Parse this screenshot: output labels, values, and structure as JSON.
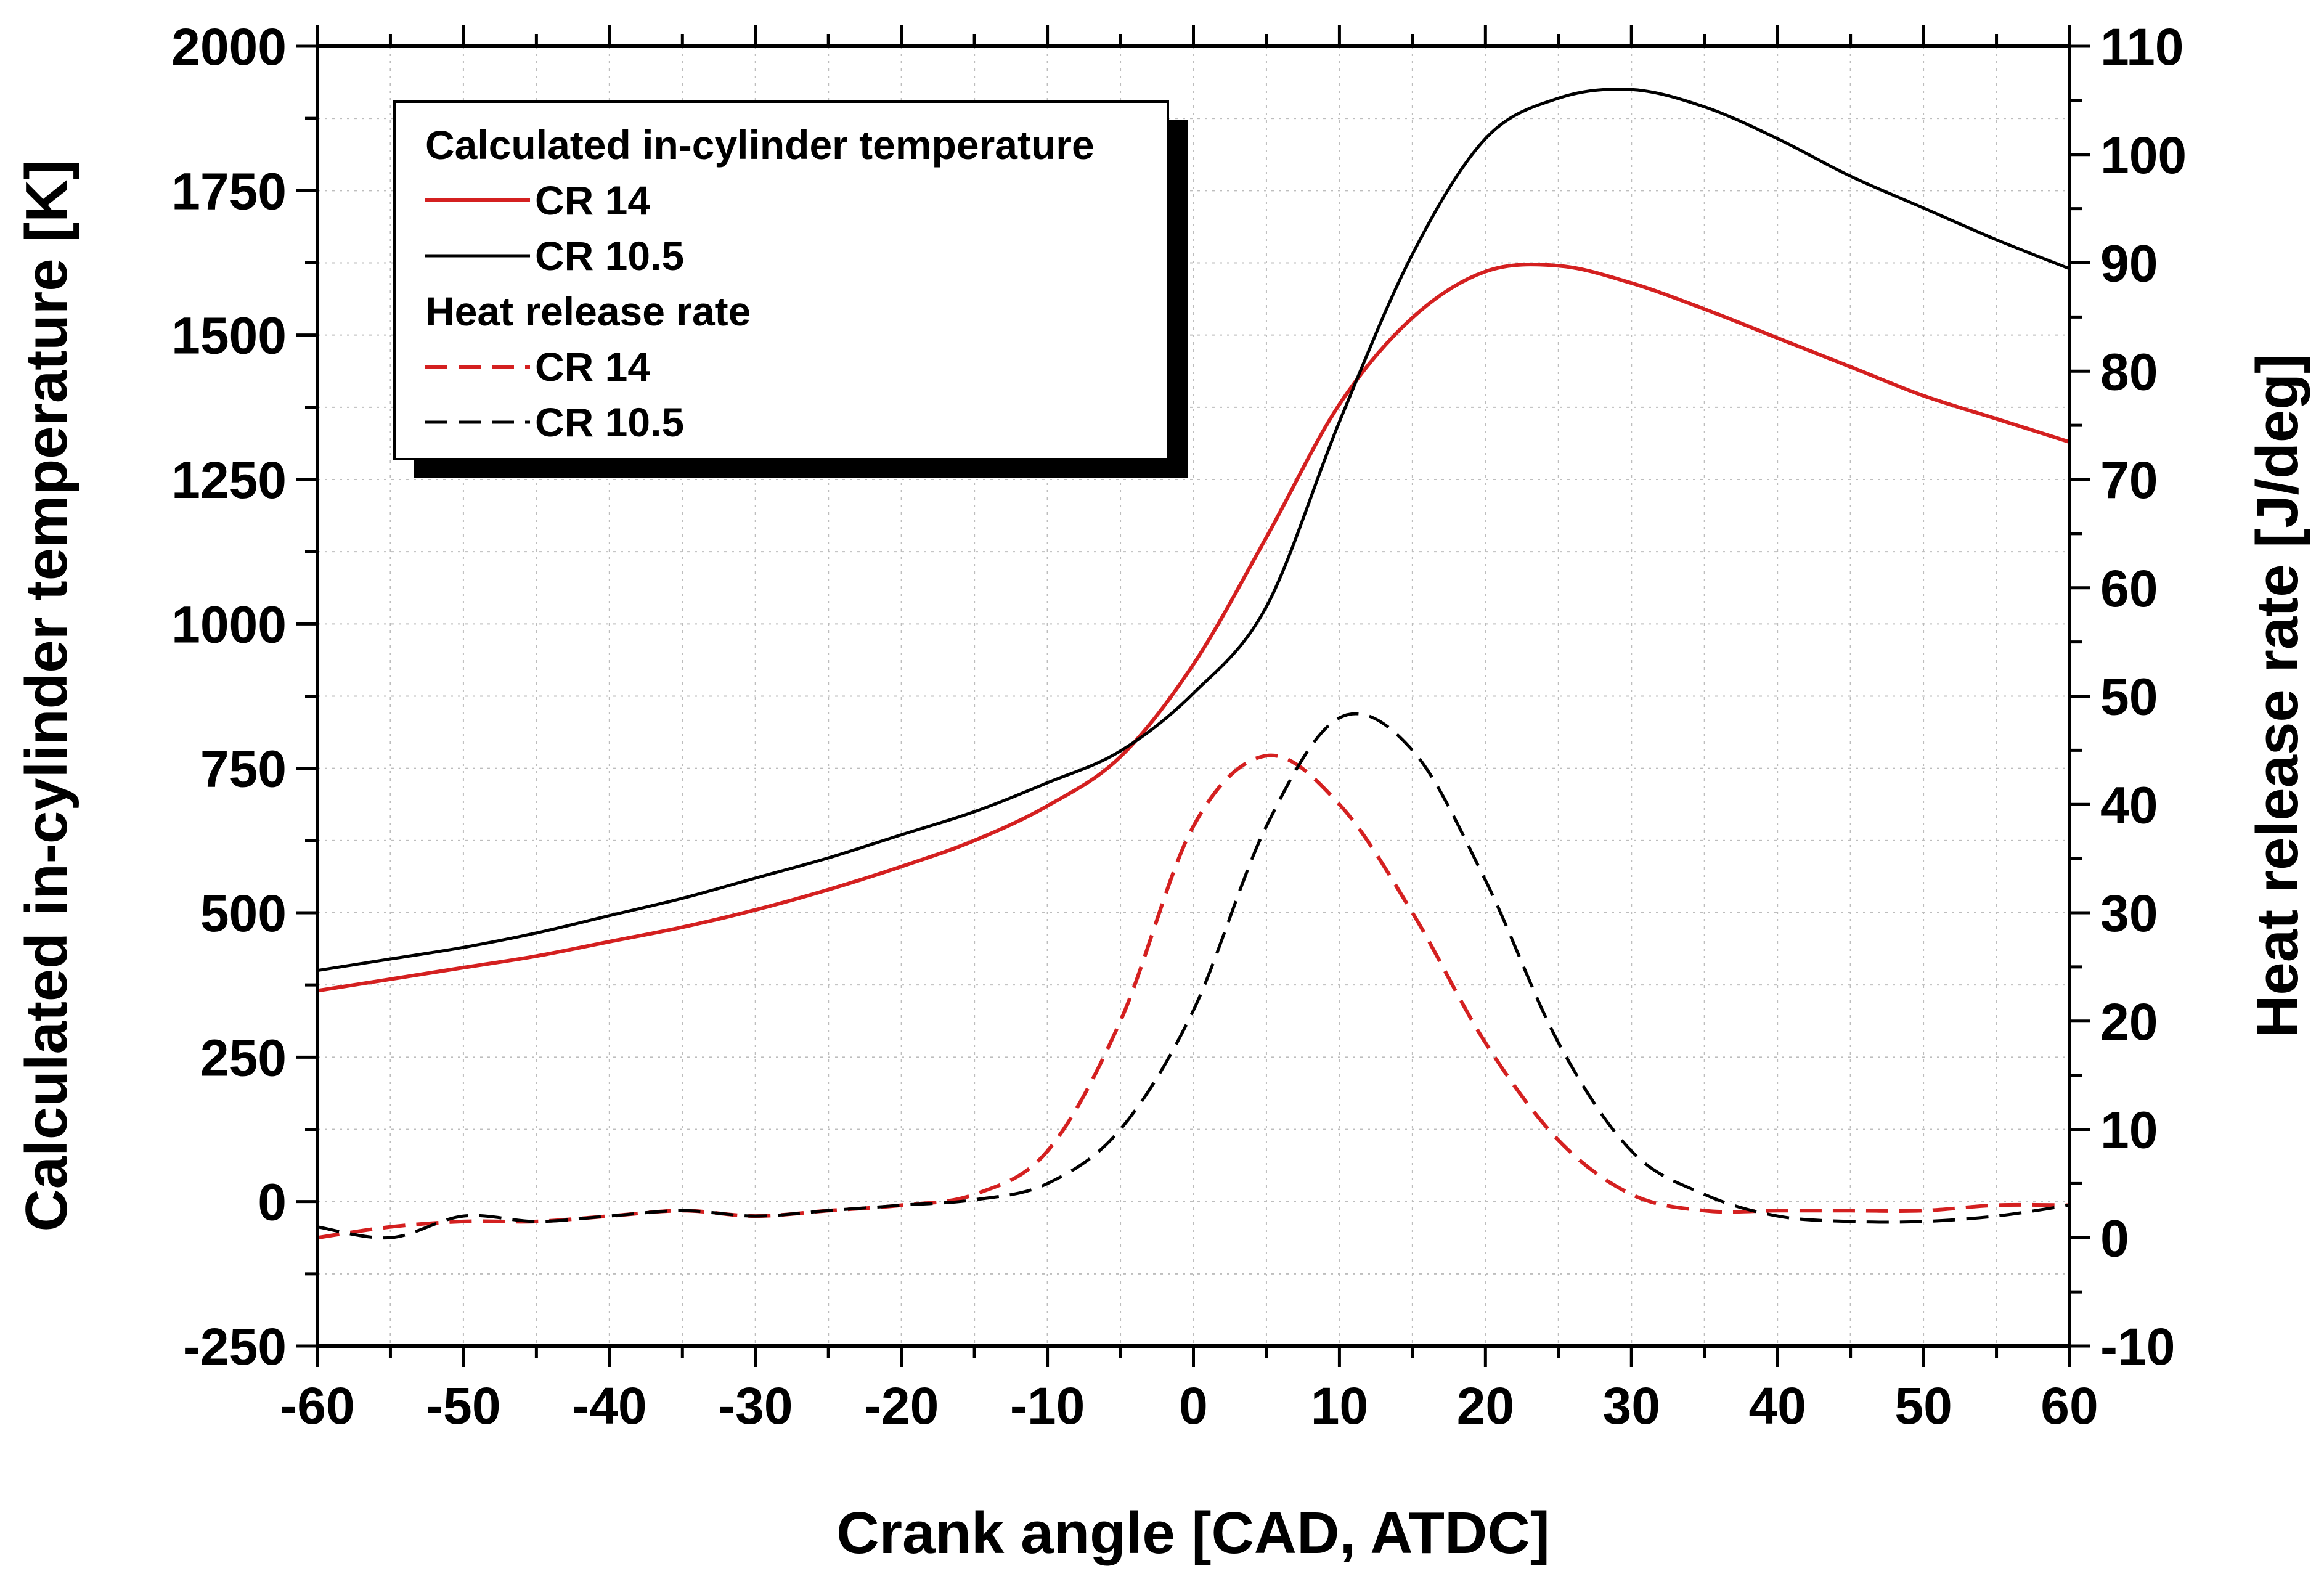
{
  "chart_data": {
    "type": "line",
    "xlabel": "Crank angle [CAD, ATDC]",
    "ylabel_left": "Calculated in-cylinder temperature [K]",
    "ylabel_right": "Heat release rate [J/deg]",
    "xlim": [
      -60,
      60
    ],
    "ylim_left": [
      -250,
      2000
    ],
    "ylim_right": [
      -10,
      110
    ],
    "xticks": [
      -60,
      -50,
      -40,
      -30,
      -20,
      -10,
      0,
      10,
      20,
      30,
      40,
      50,
      60
    ],
    "yticks_left": [
      -250,
      0,
      250,
      500,
      750,
      1000,
      1250,
      1500,
      1750,
      2000
    ],
    "yticks_right": [
      -10,
      0,
      10,
      20,
      30,
      40,
      50,
      60,
      70,
      80,
      90,
      100,
      110
    ],
    "grid": true,
    "legend_position": "top-left",
    "legend": {
      "group1_title": "Calculated in-cylinder temperature",
      "group2_title": "Heat release rate",
      "entries": [
        {
          "label": "CR 14",
          "series": "temp_cr14"
        },
        {
          "label": "CR 10.5",
          "series": "temp_cr105"
        },
        {
          "label": "CR 14",
          "series": "hrr_cr14"
        },
        {
          "label": "CR 10.5",
          "series": "hrr_cr105"
        }
      ]
    },
    "x": [
      -60,
      -55,
      -50,
      -45,
      -40,
      -35,
      -30,
      -25,
      -20,
      -15,
      -10,
      -5,
      0,
      5,
      10,
      15,
      20,
      25,
      30,
      35,
      40,
      45,
      50,
      55,
      60
    ],
    "series": [
      {
        "id": "temp_cr14",
        "name": "CR 14",
        "axis": "left",
        "color": "#d42020",
        "dash": "solid",
        "values": [
          365,
          385,
          405,
          425,
          450,
          475,
          505,
          540,
          580,
          625,
          685,
          770,
          930,
          1150,
          1380,
          1530,
          1610,
          1620,
          1590,
          1545,
          1495,
          1445,
          1395,
          1355,
          1315
        ]
      },
      {
        "id": "temp_cr105",
        "name": "CR 10.5",
        "axis": "left",
        "color": "#000000",
        "dash": "solid",
        "values": [
          400,
          420,
          440,
          465,
          495,
          525,
          560,
          595,
          635,
          675,
          725,
          780,
          880,
          1030,
          1350,
          1640,
          1840,
          1910,
          1925,
          1895,
          1840,
          1775,
          1720,
          1665,
          1615
        ]
      },
      {
        "id": "hrr_cr14",
        "name": "CR 14",
        "axis": "right",
        "color": "#d42020",
        "dash": "dashed",
        "values": [
          0,
          1,
          1.5,
          1.5,
          2,
          2.5,
          2,
          2.5,
          3,
          4,
          8,
          20,
          38,
          44.5,
          40,
          30,
          18,
          9,
          4,
          2.5,
          2.5,
          2.5,
          2.5,
          3,
          3
        ]
      },
      {
        "id": "hrr_cr105",
        "name": "CR 10.5",
        "axis": "right",
        "color": "#000000",
        "dash": "dashed",
        "values": [
          1,
          0,
          2,
          1.5,
          2,
          2.5,
          2,
          2.5,
          3,
          3.5,
          5,
          10,
          21,
          38,
          48,
          45,
          33,
          18,
          8,
          4,
          2,
          1.5,
          1.5,
          2,
          3
        ]
      }
    ]
  }
}
